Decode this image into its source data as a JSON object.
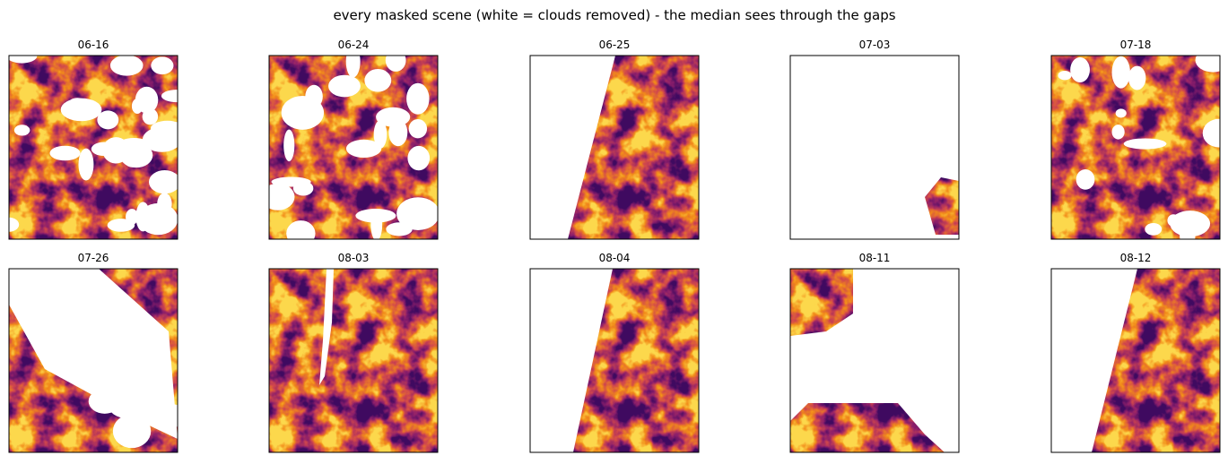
{
  "title": "every masked scene (white = clouds removed) - the median sees through the gaps",
  "panels": [
    "06-16",
    "06-24",
    "06-25",
    "07-03",
    "07-18",
    "07-26",
    "08-03",
    "08-04",
    "08-11",
    "08-12"
  ]
}
